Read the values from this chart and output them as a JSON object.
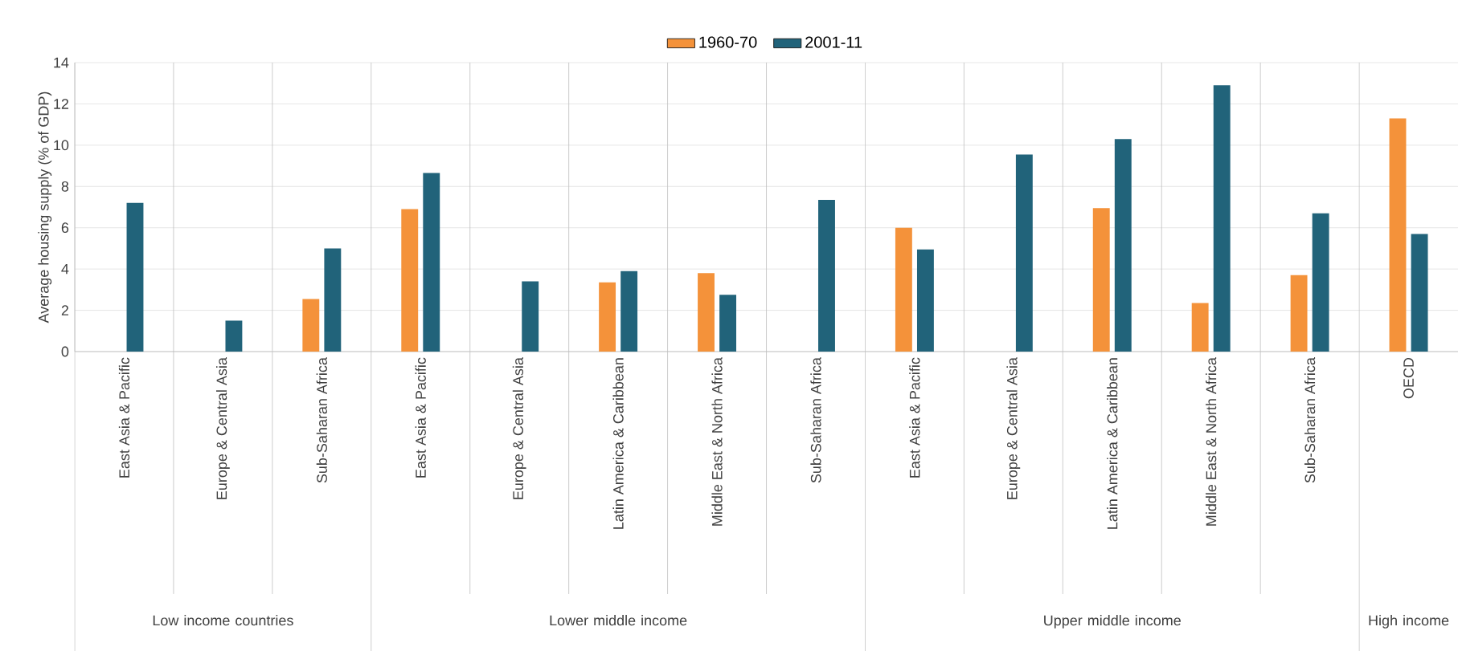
{
  "chart_data": {
    "type": "bar",
    "ylabel": "Average housing supply (% of GDP)",
    "categories": [
      "East Asia & Pacific",
      "Europe & Central Asia",
      "Sub-Saharan Africa",
      "East Asia & Pacific",
      "Europe & Central Asia",
      "Latin America & Caribbean",
      "Middle East & North Africa",
      "Sub-Saharan Africa",
      "East Asia & Pacific",
      "Europe & Central Asia",
      "Latin America & Caribbean",
      "Middle East & North Africa",
      "Sub-Saharan Africa",
      "OECD"
    ],
    "series": [
      {
        "name": "1960-70",
        "color": "#f4923a",
        "values": [
          null,
          null,
          2.55,
          6.9,
          null,
          3.35,
          3.8,
          null,
          6.0,
          null,
          6.95,
          2.35,
          3.7,
          11.3
        ]
      },
      {
        "name": "2001-11",
        "color": "#21637a",
        "values": [
          7.2,
          1.5,
          5.0,
          8.65,
          3.4,
          3.9,
          2.75,
          7.35,
          4.95,
          9.55,
          10.3,
          12.9,
          6.7,
          5.7
        ]
      }
    ],
    "annotations": [
      "Low income countries",
      "Lower middle income",
      "Upper middle income",
      "High income"
    ],
    "ylim": [
      0,
      14
    ],
    "yticks": [
      0,
      2,
      4,
      6,
      8,
      10,
      12,
      14
    ],
    "grid": "y",
    "legend": "top"
  }
}
